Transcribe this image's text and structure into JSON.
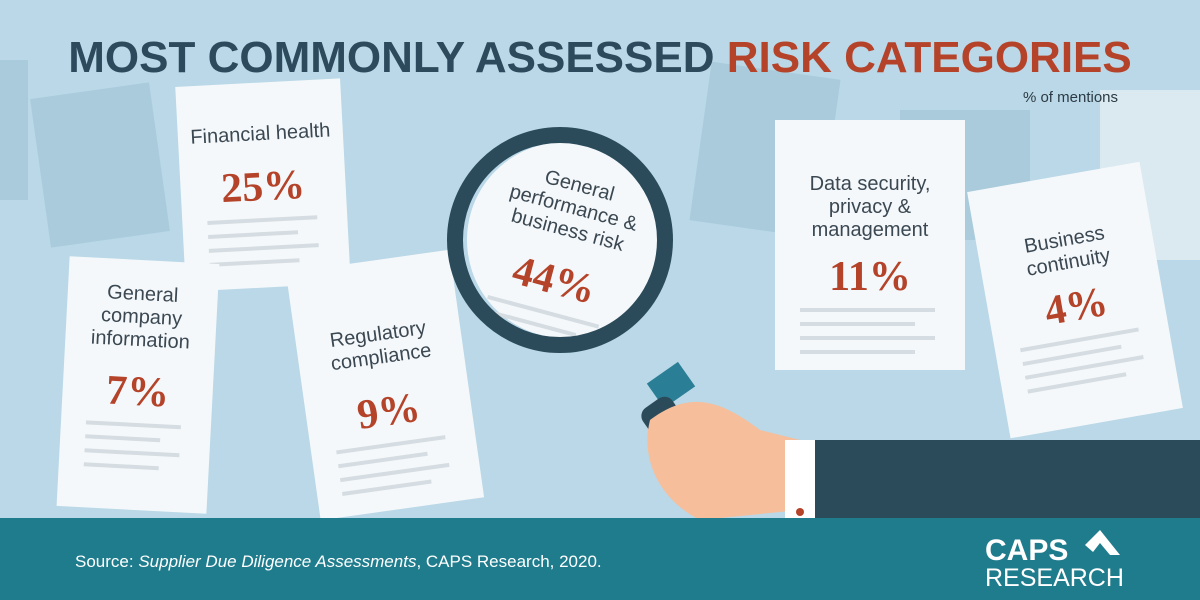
{
  "header": {
    "title_parts": [
      "MOST COMMONLY ASSESSED",
      "RISK CATEGORIES"
    ],
    "subtitle": "% of mentions"
  },
  "items": [
    {
      "label": [
        "Financial health"
      ],
      "value": "25%"
    },
    {
      "label": [
        "General",
        "company",
        "information"
      ],
      "value": "7%"
    },
    {
      "label": [
        "Regulatory",
        "compliance"
      ],
      "value": "9%"
    },
    {
      "label": [
        "General",
        "performance &",
        "business risk"
      ],
      "value": "44%"
    },
    {
      "label": [
        "Data security,",
        "privacy &",
        "management"
      ],
      "value": "11%"
    },
    {
      "label": [
        "Business",
        "continuity"
      ],
      "value": "4%"
    }
  ],
  "footer": {
    "source_parts": [
      "Source:",
      "Supplier Due Diligence Assessments",
      ", CAPS Research, 2020."
    ],
    "logo": [
      "CAPS",
      "RESEARCH"
    ]
  }
}
